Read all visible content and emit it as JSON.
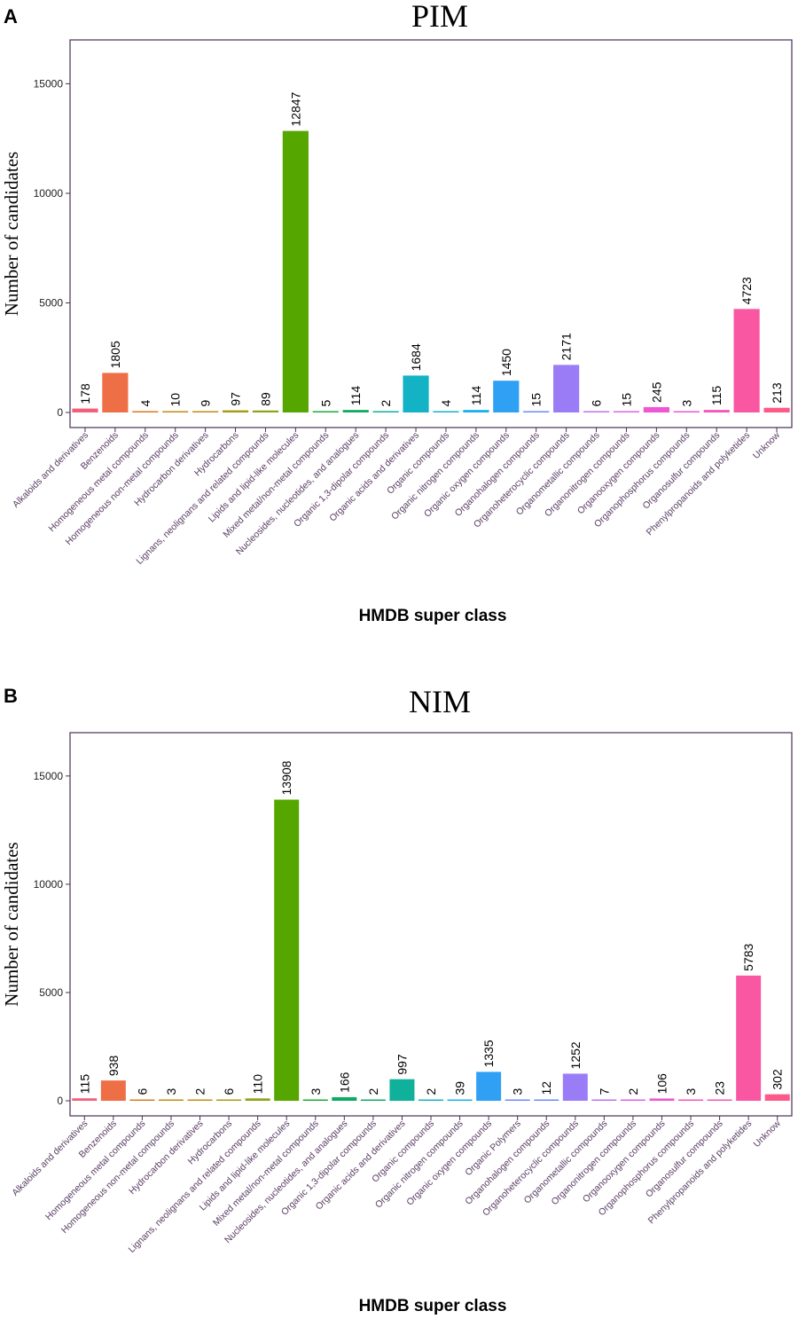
{
  "figure": {
    "panels": [
      "A",
      "B"
    ],
    "axis_color": "#4a2e55",
    "bar_colors": [
      "#f1607a",
      "#ee6f45",
      "#d9791f",
      "#c48a12",
      "#a79a10",
      "#8ba416",
      "#56a600",
      "#19aa36",
      "#0faa61",
      "#0fb19a",
      "#14b2c5",
      "#16b0ea",
      "#30a0f5",
      "#6a8bfa",
      "#9b7cf7",
      "#c16ff1",
      "#dd60e8",
      "#ee56d3",
      "#f653b8",
      "#f957a2",
      "#fc5b8a"
    ]
  },
  "chart_data": [
    {
      "panel": "A",
      "type": "bar",
      "title": "PIM",
      "xlabel": "HMDB super class",
      "ylabel": "Number of candidates",
      "ylim": [
        0,
        17000
      ],
      "yticks": [
        0,
        5000,
        10000,
        15000
      ],
      "grid": false,
      "categories": [
        "Alkaloids and derivatives",
        "Benzenoids",
        "Homogeneous metal compounds",
        "Homogeneous non-metal compounds",
        "Hydrocarbon derivatives",
        "Hydrocarbons",
        "Lignans, neolignans and related compounds",
        "Lipids and lipid-like molecules",
        "Mixed metal/non-metal compounds",
        "Nucleosides, nucleotides, and analogues",
        "Organic 1,3-dipolar compounds",
        "Organic acids and derivatives",
        "Organic compounds",
        "Organic nitrogen compounds",
        "Organic oxygen compounds",
        "Organohalogen compounds",
        "Organoheterocyclic compounds",
        "Organometallic compounds",
        "Organonitrogen compounds",
        "Organooxygen compounds",
        "Organophosphorus compounds",
        "Organosulfur compounds",
        "Phenylpropanoids and polyketides",
        "Unknow"
      ],
      "values": [
        178,
        1805,
        4,
        10,
        9,
        97,
        89,
        12847,
        5,
        114,
        2,
        1684,
        4,
        114,
        1450,
        15,
        2171,
        6,
        15,
        245,
        3,
        115,
        4723,
        213
      ]
    },
    {
      "panel": "B",
      "type": "bar",
      "title": "NIM",
      "xlabel": "HMDB super class",
      "ylabel": "Number of candidates",
      "ylim": [
        0,
        17000
      ],
      "yticks": [
        0,
        5000,
        10000,
        15000
      ],
      "grid": false,
      "categories": [
        "Alkaloids and derivatives",
        "Benzenoids",
        "Homogeneous metal compounds",
        "Homogeneous non-metal compounds",
        "Hydrocarbon derivatives",
        "Hydrocarbons",
        "Lignans, neolignans and related compounds",
        "Lipids and lipid-like molecules",
        "Mixed metal/non-metal compounds",
        "Nucleosides, nucleotides, and analogues",
        "Organic 1,3-dipolar compounds",
        "Organic acids and derivatives",
        "Organic compounds",
        "Organic nitrogen compounds",
        "Organic oxygen compounds",
        "Organic Polymers",
        "Organohalogen compounds",
        "Organoheterocyclic compounds",
        "Organometallic compounds",
        "Organonitrogen compounds",
        "Organooxygen compounds",
        "Organophosphorus compounds",
        "Organosulfur compounds",
        "Phenylpropanoids and polyketides",
        "Unknow"
      ],
      "values": [
        115,
        938,
        6,
        3,
        2,
        6,
        110,
        13908,
        3,
        166,
        2,
        997,
        2,
        39,
        1335,
        3,
        12,
        1252,
        7,
        2,
        106,
        3,
        23,
        5783,
        302
      ]
    }
  ]
}
